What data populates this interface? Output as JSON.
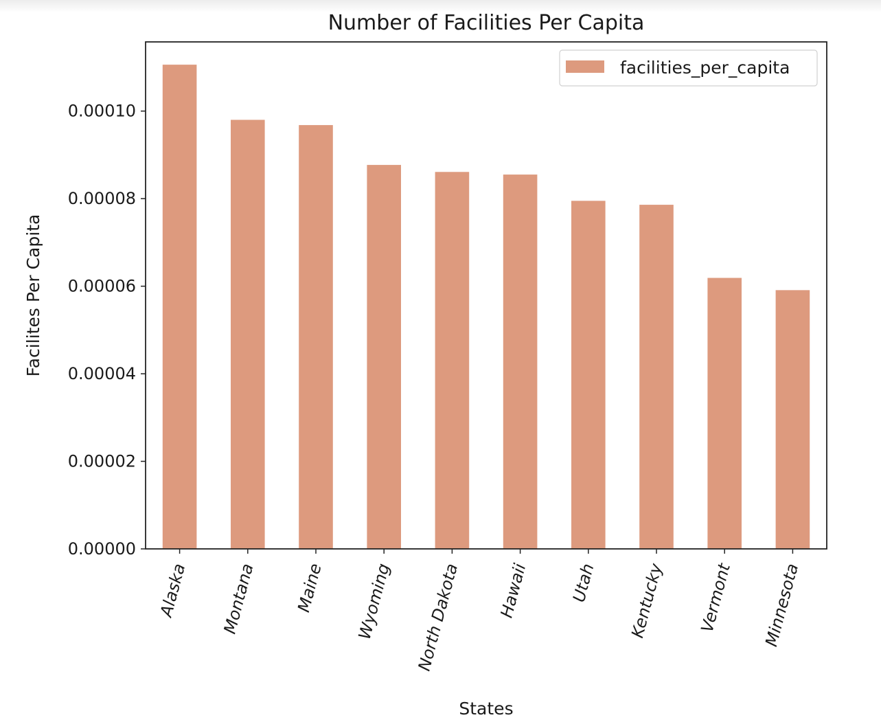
{
  "chart_data": {
    "type": "bar",
    "title": "Number of Facilities Per Capita",
    "xlabel": "States",
    "ylabel": "Facilites Per Capita",
    "categories": [
      "Alaska",
      "Montana",
      "Maine",
      "Wyoming",
      "North Dakota",
      "Hawaii",
      "Utah",
      "Kentucky",
      "Vermont",
      "Minnesota"
    ],
    "series": [
      {
        "name": "facilities_per_capita",
        "color": "#dd9a7e",
        "values": [
          0.0001106,
          9.8e-05,
          9.68e-05,
          8.77e-05,
          8.61e-05,
          8.55e-05,
          7.95e-05,
          7.86e-05,
          6.19e-05,
          5.91e-05
        ]
      }
    ],
    "ylim": [
      0,
      0.0001158
    ],
    "yticks": [
      0,
      2e-05,
      4e-05,
      6e-05,
      8e-05,
      0.0001
    ],
    "ytick_labels": [
      "0.00000",
      "0.00002",
      "0.00004",
      "0.00006",
      "0.00008",
      "0.00010"
    ],
    "grid": false,
    "legend_position": "top-right"
  }
}
